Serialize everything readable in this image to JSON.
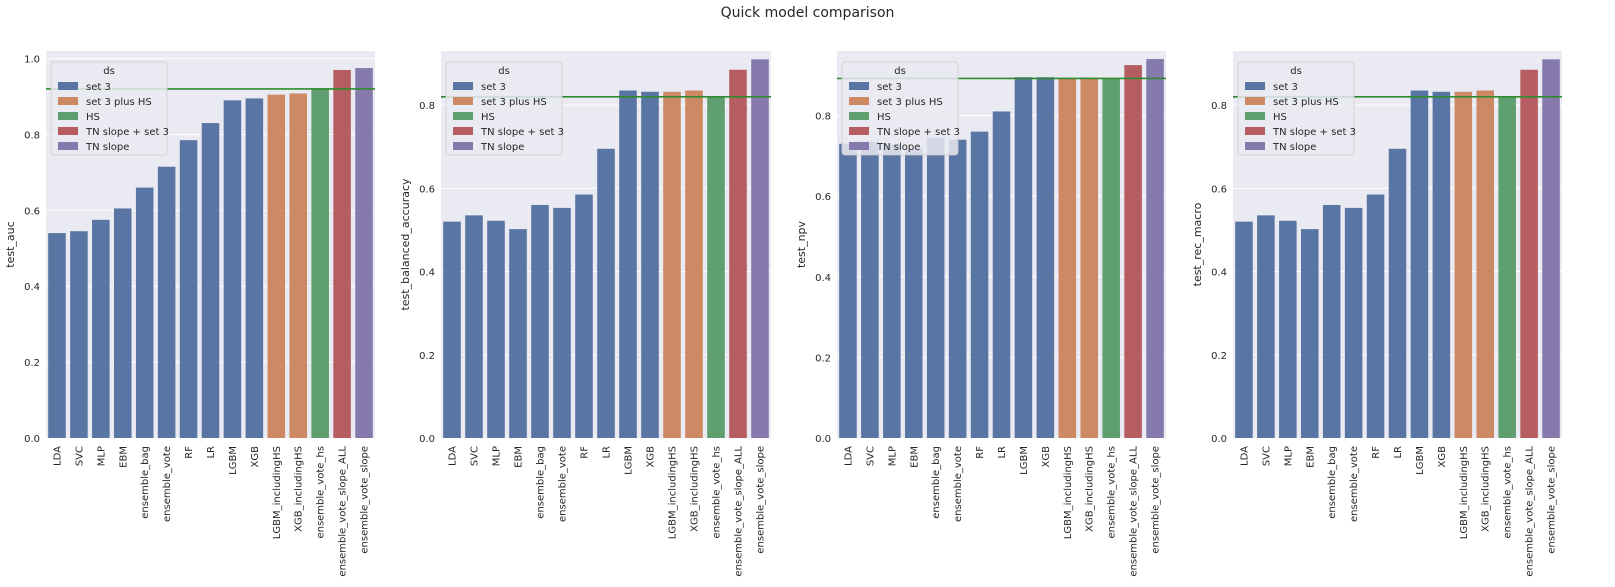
{
  "suptitle": "Quick model comparison",
  "legend": {
    "title": "ds",
    "placement": "upper left",
    "entries": [
      {
        "name": "set 3",
        "color": "#5975a4"
      },
      {
        "name": "set 3 plus HS",
        "color": "#cc8963"
      },
      {
        "name": "HS",
        "color": "#5f9e6e"
      },
      {
        "name": "TN slope + set 3",
        "color": "#b55d60"
      },
      {
        "name": "TN slope",
        "color": "#857aab"
      }
    ]
  },
  "colors": {
    "plot_background": "#eaeaf2",
    "grid": "#ffffff",
    "reference_line": "#2e8b2e"
  },
  "chart_data": [
    {
      "type": "bar",
      "ylabel": "test_auc",
      "ylim": [
        0,
        1.02
      ],
      "yticks": [
        "0.0",
        "0.2",
        "0.4",
        "0.6",
        "0.8",
        "1.0"
      ],
      "grid": true,
      "reference_line": 0.92,
      "categories": [
        "LDA",
        "SVC",
        "MLP",
        "EBM",
        "ensemble_bag",
        "ensemble_vote",
        "RF",
        "LR",
        "LGBM",
        "XGB",
        "LGBM_includingHS",
        "XGB_includingHS",
        "ensemble_vote_hs",
        "ensemble_vote_slope_ALL",
        "ensemble_vote_slope"
      ],
      "groups": [
        "set 3",
        "set 3",
        "set 3",
        "set 3",
        "set 3",
        "set 3",
        "set 3",
        "set 3",
        "set 3",
        "set 3",
        "set 3 plus HS",
        "set 3 plus HS",
        "HS",
        "TN slope + set 3",
        "TN slope"
      ],
      "values": [
        0.54,
        0.545,
        0.575,
        0.605,
        0.66,
        0.715,
        0.785,
        0.83,
        0.89,
        0.895,
        0.905,
        0.908,
        0.922,
        0.97,
        0.975
      ]
    },
    {
      "type": "bar",
      "ylabel": "test_balanced_accuracy",
      "ylim": [
        0,
        0.93
      ],
      "yticks": [
        "0.0",
        "0.2",
        "0.4",
        "0.6",
        "0.8"
      ],
      "grid": true,
      "reference_line": 0.82,
      "categories": [
        "LDA",
        "SVC",
        "MLP",
        "EBM",
        "ensemble_bag",
        "ensemble_vote",
        "RF",
        "LR",
        "LGBM",
        "XGB",
        "LGBM_includingHS",
        "XGB_includingHS",
        "ensemble_vote_hs",
        "ensemble_vote_slope_ALL",
        "ensemble_vote_slope"
      ],
      "groups": [
        "set 3",
        "set 3",
        "set 3",
        "set 3",
        "set 3",
        "set 3",
        "set 3",
        "set 3",
        "set 3",
        "set 3",
        "set 3 plus HS",
        "set 3 plus HS",
        "HS",
        "TN slope + set 3",
        "TN slope"
      ],
      "values": [
        0.52,
        0.535,
        0.522,
        0.502,
        0.56,
        0.553,
        0.585,
        0.695,
        0.835,
        0.832,
        0.832,
        0.835,
        0.82,
        0.885,
        0.91
      ]
    },
    {
      "type": "bar",
      "ylabel": "test_npv",
      "ylim": [
        0,
        0.96
      ],
      "yticks": [
        "0.0",
        "0.2",
        "0.4",
        "0.6",
        "0.8"
      ],
      "grid": true,
      "reference_line": 0.892,
      "categories": [
        "LDA",
        "SVC",
        "MLP",
        "EBM",
        "ensemble_bag",
        "ensemble_vote",
        "RF",
        "LR",
        "LGBM",
        "XGB",
        "LGBM_includingHS",
        "XGB_includingHS",
        "ensemble_vote_hs",
        "ensemble_vote_slope_ALL",
        "ensemble_vote_slope"
      ],
      "groups": [
        "set 3",
        "set 3",
        "set 3",
        "set 3",
        "set 3",
        "set 3",
        "set 3",
        "set 3",
        "set 3",
        "set 3",
        "set 3 plus HS",
        "set 3 plus HS",
        "HS",
        "TN slope + set 3",
        "TN slope"
      ],
      "values": [
        0.73,
        0.735,
        0.728,
        0.718,
        0.745,
        0.74,
        0.76,
        0.81,
        0.895,
        0.895,
        0.892,
        0.894,
        0.893,
        0.925,
        0.94
      ]
    },
    {
      "type": "bar",
      "ylabel": "test_rec_macro",
      "ylim": [
        0,
        0.93
      ],
      "yticks": [
        "0.0",
        "0.2",
        "0.4",
        "0.6",
        "0.8"
      ],
      "grid": true,
      "reference_line": 0.82,
      "categories": [
        "LDA",
        "SVC",
        "MLP",
        "EBM",
        "ensemble_bag",
        "ensemble_vote",
        "RF",
        "LR",
        "LGBM",
        "XGB",
        "LGBM_includingHS",
        "XGB_includingHS",
        "ensemble_vote_hs",
        "ensemble_vote_slope_ALL",
        "ensemble_vote_slope"
      ],
      "groups": [
        "set 3",
        "set 3",
        "set 3",
        "set 3",
        "set 3",
        "set 3",
        "set 3",
        "set 3",
        "set 3",
        "set 3",
        "set 3 plus HS",
        "set 3 plus HS",
        "HS",
        "TN slope + set 3",
        "TN slope"
      ],
      "values": [
        0.52,
        0.535,
        0.522,
        0.502,
        0.56,
        0.553,
        0.585,
        0.695,
        0.835,
        0.832,
        0.832,
        0.835,
        0.82,
        0.885,
        0.91
      ]
    }
  ]
}
